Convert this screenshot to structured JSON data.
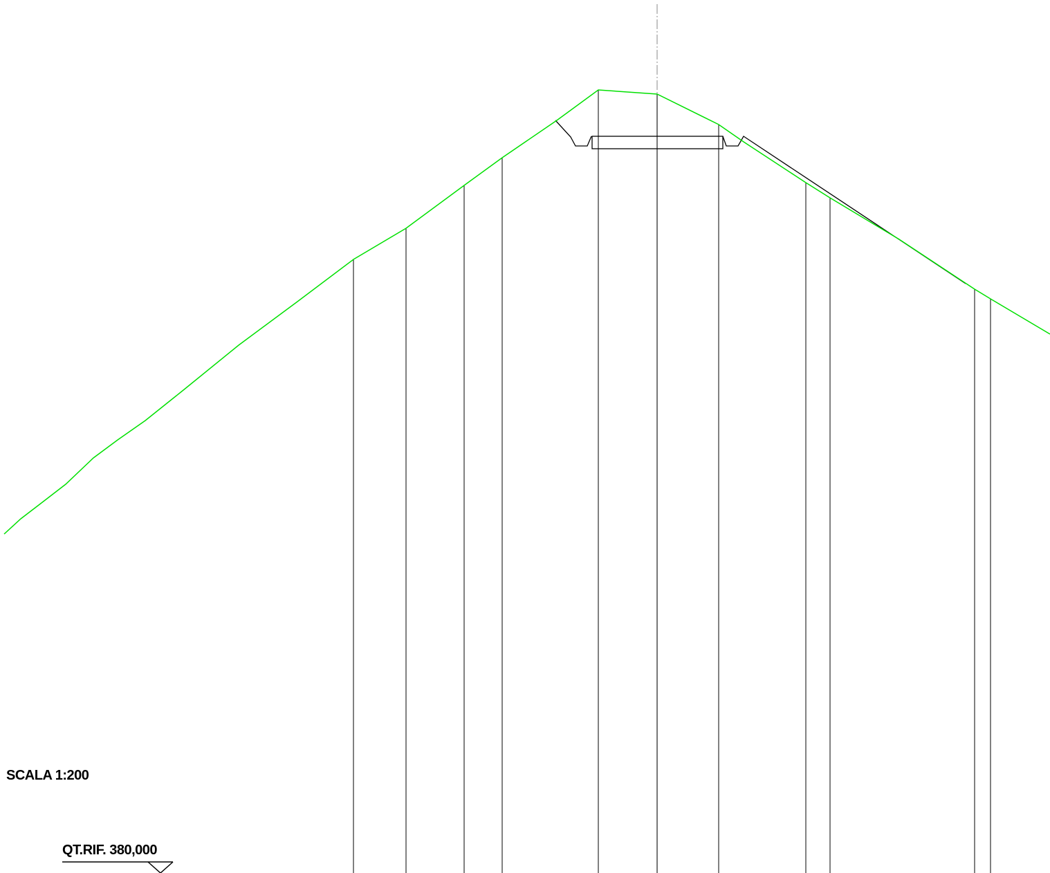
{
  "scale_label": "SCALA 1:200",
  "reference_label": "QT.RIF. 380,000",
  "colors": {
    "terrain": "#00e000",
    "lines": "#000000",
    "axis": "#9a9a9a",
    "background": "#ffffff"
  }
}
